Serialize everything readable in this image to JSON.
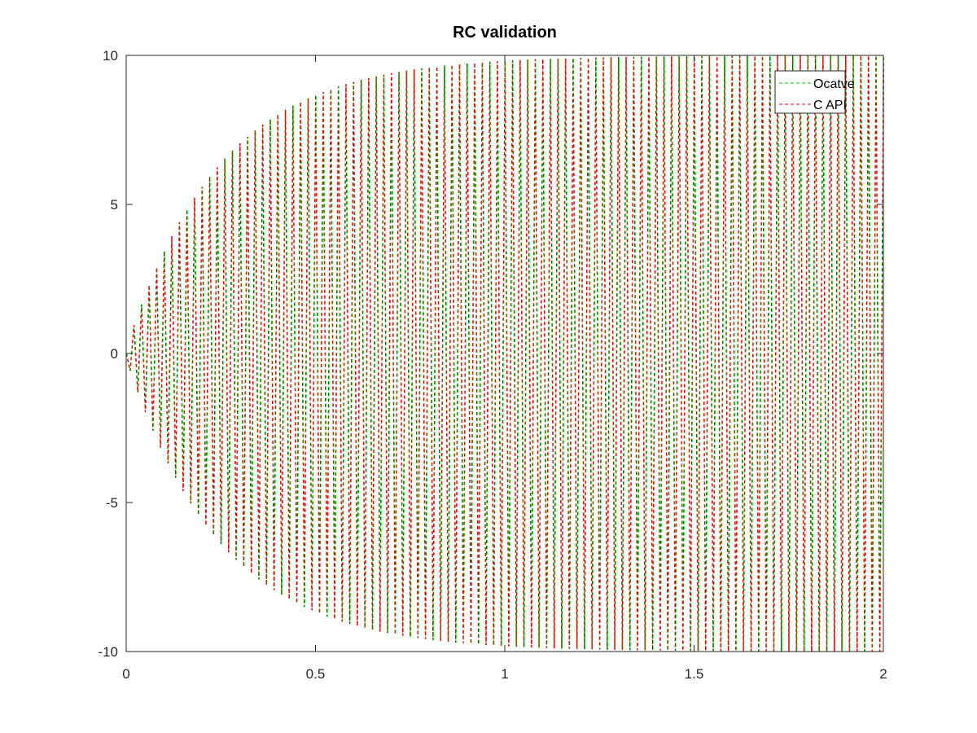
{
  "chart_data": {
    "type": "line",
    "title": "RC validation",
    "xlabel": "",
    "ylabel": "",
    "xlim": [
      0,
      2
    ],
    "ylim": [
      -10,
      10
    ],
    "x_ticks": [
      0,
      0.5,
      1,
      1.5,
      2
    ],
    "x_tick_labels": [
      "0",
      "0.5",
      "1",
      "1.5",
      "2"
    ],
    "y_ticks": [
      -10,
      -5,
      0,
      5,
      10
    ],
    "y_tick_labels": [
      "-10",
      "-5",
      "0",
      "5",
      "10"
    ],
    "grid": false,
    "legend_position": "top-right",
    "signal": {
      "description": "square-wave driven RC response, amplitude rising toward 10",
      "amplitude": 10,
      "frequency_hz": 50,
      "time_constant_s": 0.25,
      "t_start": 0,
      "t_end": 2
    },
    "series": [
      {
        "name": "Ocatve",
        "color": "#00cc00",
        "dash": "4,3",
        "offset": 0.0015
      },
      {
        "name": "C API",
        "color": "#dd0000",
        "dash": "4,3",
        "offset": 0
      }
    ]
  }
}
